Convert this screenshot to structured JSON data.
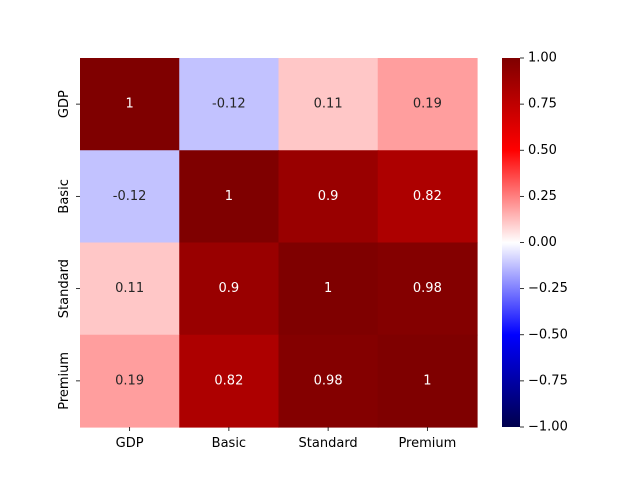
{
  "chart_data": {
    "type": "heatmap",
    "row_labels": [
      "GDP",
      "Basic",
      "Standard",
      "Premium"
    ],
    "col_labels": [
      "GDP",
      "Basic",
      "Standard",
      "Premium"
    ],
    "values": [
      [
        1,
        -0.12,
        0.11,
        0.19
      ],
      [
        -0.12,
        1,
        0.9,
        0.82
      ],
      [
        0.11,
        0.9,
        1,
        0.98
      ],
      [
        0.19,
        0.82,
        0.98,
        1
      ]
    ],
    "cell_labels": [
      [
        "1",
        "-0.12",
        "0.11",
        "0.19"
      ],
      [
        "-0.12",
        "1",
        "0.9",
        "0.82"
      ],
      [
        "0.11",
        "0.9",
        "1",
        "0.98"
      ],
      [
        "0.19",
        "0.82",
        "0.98",
        "1"
      ]
    ],
    "colormap": "seismic",
    "vmin": -1,
    "vmax": 1,
    "colorbar_ticks": [
      "1.00",
      "0.75",
      "0.50",
      "0.25",
      "0.00",
      "−0.25",
      "−0.50",
      "−0.75",
      "−1.00"
    ],
    "colorbar_tick_values": [
      1,
      0.75,
      0.5,
      0.25,
      0,
      -0.25,
      -0.5,
      -0.75,
      -1
    ]
  }
}
